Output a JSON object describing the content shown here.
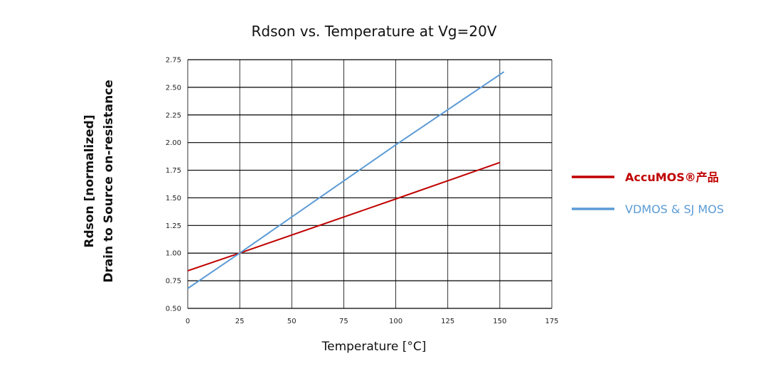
{
  "chart_data": {
    "type": "line",
    "title": "Rdson vs. Temperature at Vg=20V",
    "xlabel": "Temperature [°C]",
    "ylabel_line1": "Rdson [normalized]",
    "ylabel_line2": "Drain to Source on-resistance",
    "xlim": [
      0,
      175
    ],
    "ylim": [
      0.5,
      2.75
    ],
    "x_ticks": [
      "0",
      "25",
      "50",
      "75",
      "100",
      "125",
      "150",
      "175"
    ],
    "y_ticks": [
      "0.50",
      "0.75",
      "1.00",
      "1.25",
      "1.50",
      "1.75",
      "2.00",
      "2.25",
      "2.50",
      "2.75"
    ],
    "grid": true,
    "legend_position": "right",
    "series": [
      {
        "name": "AccuMOS®产品",
        "color": "#c00000",
        "x": [
          0,
          25,
          100,
          150
        ],
        "y": [
          0.84,
          1.0,
          1.49,
          1.82
        ]
      },
      {
        "name": "VDMOS & SJ MOS",
        "color": "#5b9bd5",
        "x": [
          0,
          25,
          100,
          152
        ],
        "y": [
          0.68,
          1.0,
          1.98,
          2.64
        ]
      }
    ]
  }
}
